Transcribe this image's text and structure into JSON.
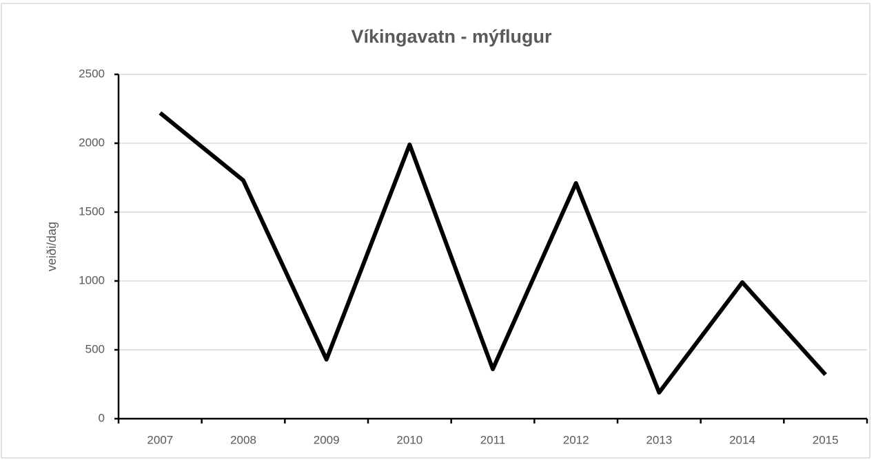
{
  "chart_data": {
    "type": "line",
    "title": "Víkingavatn - mýflugur",
    "ylabel": "veiði/dag",
    "categories": [
      "2007",
      "2008",
      "2009",
      "2010",
      "2011",
      "2012",
      "2013",
      "2014",
      "2015"
    ],
    "series": [
      {
        "name": "veiði/dag",
        "color": "#000000",
        "values": [
          2220,
          1730,
          430,
          1990,
          360,
          1710,
          190,
          990,
          320
        ]
      }
    ],
    "ylim": [
      0,
      2500
    ],
    "yticks": [
      0,
      500,
      1000,
      1500,
      2000,
      2500
    ],
    "grid": true
  }
}
